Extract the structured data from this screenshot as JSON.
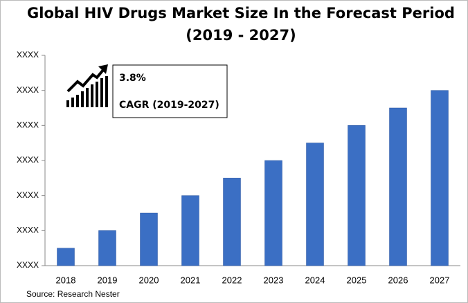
{
  "chart_data": {
    "type": "bar",
    "title": "Global HIV Drugs Market Size In the Forecast Period",
    "subtitle": "(2019 - 2027)",
    "categories": [
      "2018",
      "2019",
      "2020",
      "2021",
      "2022",
      "2023",
      "2024",
      "2025",
      "2026",
      "2027"
    ],
    "values": [
      0.5,
      1.0,
      1.5,
      2.0,
      2.5,
      3.0,
      3.5,
      4.0,
      4.5,
      5.0
    ],
    "color": "#3b6fc4",
    "ylim": [
      0,
      6
    ],
    "yticks": [
      {
        "value": 0,
        "label": "XXXX"
      },
      {
        "value": 1,
        "label": "XXXX"
      },
      {
        "value": 2,
        "label": "XXXX"
      },
      {
        "value": 3,
        "label": "XXXX"
      },
      {
        "value": 4,
        "label": "XXXX"
      },
      {
        "value": 5,
        "label": "XXXX"
      },
      {
        "value": 6,
        "label": "XXXX"
      }
    ],
    "grid": false,
    "annotations": {
      "cagr_value": "3.8%",
      "cagr_label": "CAGR (2019-2027)"
    },
    "source": "Source: Research Nester"
  }
}
